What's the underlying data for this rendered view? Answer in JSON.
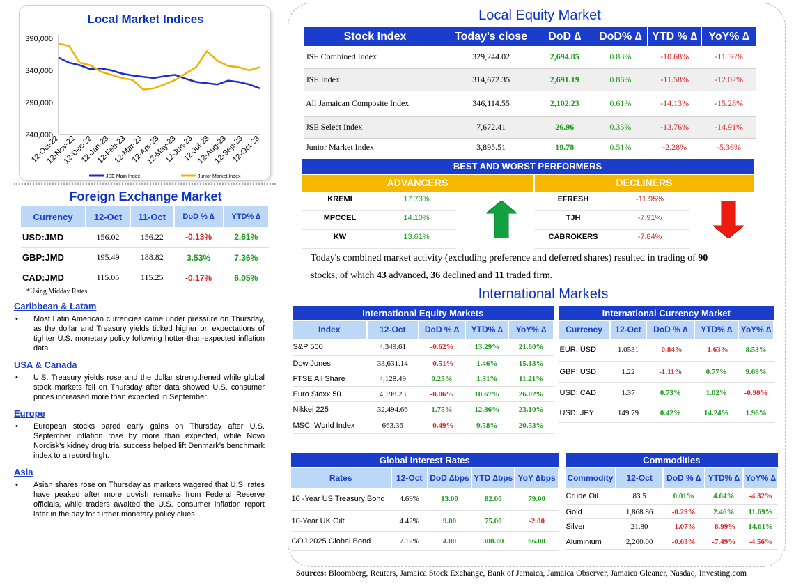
{
  "chart": {
    "title": "Local Market Indices",
    "yticks": [
      "390,000",
      "340,000",
      "290,000",
      "240,000"
    ],
    "xticks": [
      "12-Oct-22",
      "12-Nov-22",
      "12-Dec-22",
      "12-Jan-23",
      "12-Feb-23",
      "12-Mar-23",
      "12-Apr-23",
      "12-May-23",
      "12-Jun-23",
      "12-Jul-23",
      "12-Aug-23",
      "12-Sep-23",
      "12-Oct-23"
    ],
    "legend": [
      "JSE Main Index",
      "Junior Market Index"
    ],
    "colors": [
      "#1a2ccc",
      "#f0b400"
    ]
  },
  "chart_data": {
    "type": "line",
    "ylim": [
      240000,
      390000
    ],
    "series": [
      {
        "name": "JSE Main Index",
        "values": [
          360000,
          352000,
          348000,
          342000,
          343000,
          340000,
          335000,
          332000,
          330000,
          328000,
          331000,
          333000,
          327000,
          322000,
          320000,
          318000,
          324000,
          322000,
          318000,
          312000
        ]
      },
      {
        "name": "Junior Market Index",
        "values": [
          382000,
          378000,
          352000,
          348000,
          338000,
          333000,
          328000,
          325000,
          310000,
          312000,
          318000,
          325000,
          335000,
          345000,
          370000,
          355000,
          347000,
          345000,
          340000,
          345000
        ]
      }
    ]
  },
  "fx": {
    "title": "Foreign Exchange Market",
    "headers": [
      "Currency",
      "12-Oct",
      "11-Oct",
      "DoD % ∆",
      "YTD% ∆"
    ],
    "rows": [
      [
        "USD:JMD",
        "156.02",
        "156.22",
        "-0.13%",
        "2.61%"
      ],
      [
        "GBP:JMD",
        "195.49",
        "188.82",
        "3.53%",
        "7.36%"
      ],
      [
        "CAD:JMD",
        "115.05",
        "115.25",
        "-0.17%",
        "6.05%"
      ]
    ],
    "note": "*Using Midday Rates"
  },
  "news": [
    {
      "h": "Caribbean & Latam",
      "p": "Most Latin American currencies came under pressure on Thursday, as the dollar and Treasury yields ticked higher on expectations of tighter U.S. monetary policy following hotter-than-expected inflation data."
    },
    {
      "h": "USA & Canada",
      "p": "U.S. Treasury yields rose and the dollar strengthened while global stock markets fell on Thursday after data showed U.S. consumer prices increased more than expected in September."
    },
    {
      "h": "Europe",
      "p": "European stocks pared early gains on Thursday after U.S. September inflation rose by more than expected, while Novo Nordisk's kidney drug trial success helped lift Denmark's benchmark index to a record high."
    },
    {
      "h": "Asia",
      "p": "Asian shares rose on Thursday as markets wagered that U.S. rates have peaked after more dovish remarks from Federal Reserve officials, while traders awaited the U.S. consumer inflation report later in the day for further monetary policy clues."
    }
  ],
  "lem": {
    "title": "Local Equity Market",
    "headers": [
      "Stock Index",
      "Today's close",
      "DoD  ∆",
      "DoD% ∆",
      "YTD % ∆",
      "YoY% ∆"
    ],
    "rows": [
      [
        "JSE Combined Index",
        "329,244.02",
        "2,694.85",
        "0.83%",
        "-10.68%",
        "-11.36%"
      ],
      [
        "JSE Index",
        "314,672.35",
        "2,691.19",
        "0.86%",
        "-11.58%",
        "-12.02%"
      ],
      [
        "All Jamaican Composite Index",
        "346,114.55",
        "2,102.23",
        "0.61%",
        "-14.13%",
        "-15.28%"
      ],
      [
        "JSE Select Index",
        "7,672.41",
        "26.96",
        "0.35%",
        "-13.76%",
        "-14.91%"
      ],
      [
        "Junior Market Index",
        "3,895.51",
        "19.78",
        "0.51%",
        "-2.28%",
        "-5.36%"
      ]
    ]
  },
  "bw": {
    "title": "BEST AND WORST PERFORMERS",
    "adv": "ADVANCERS",
    "dec": "DECLINERS",
    "advancers": [
      [
        "KREMI",
        "17.73%"
      ],
      [
        "MPCCEL",
        "14.10%"
      ],
      [
        "KW",
        "13.61%"
      ]
    ],
    "decliners": [
      [
        "EFRESH",
        "-11.95%"
      ],
      [
        "TJH",
        "-7.91%"
      ],
      [
        "CABROKERS",
        "-7.84%"
      ]
    ]
  },
  "summary": {
    "a": "Today's combined market activity (excluding preference and deferred shares) resulted in trading of ",
    "n1": "90",
    "b": " stocks, of which ",
    "n2": "43",
    "c": " advanced, ",
    "n3": "36",
    "d": " declined and ",
    "n4": "11",
    "e": " traded firm."
  },
  "intl": {
    "title": "International Markets"
  },
  "iem": {
    "title": "International Equity Markets",
    "headers": [
      "Index",
      "12-Oct",
      "DoD % ∆",
      "YTD% ∆",
      "YoY% ∆"
    ],
    "rows": [
      [
        "S&P 500",
        "4,349.61",
        "-0.62%",
        "13.29%",
        "21.60%"
      ],
      [
        "Dow Jones",
        "33,631.14",
        "-0.51%",
        "1.46%",
        "15.13%"
      ],
      [
        "FTSE All Share",
        "4,128.49",
        "0.25%",
        "1.31%",
        "11.21%"
      ],
      [
        "Euro Stoxx 50",
        "4,198.23",
        "-0.06%",
        "10.67%",
        "26.02%"
      ],
      [
        "Nikkei 225",
        "32,494.66",
        "1.75%",
        "12.86%",
        "23.10%"
      ],
      [
        "MSCI World Index",
        "663.36",
        "-0.49%",
        "9.58%",
        "20.53%"
      ]
    ]
  },
  "icm": {
    "title": "International Currency Market",
    "headers": [
      "Currency",
      "12-Oct",
      "DoD % ∆",
      "YTD% ∆",
      "YoY% ∆"
    ],
    "rows": [
      [
        "EUR: USD",
        "1.0531",
        "-0.84%",
        "-1.63%",
        "8.53%"
      ],
      [
        "GBP: USD",
        "1.22",
        "-1.11%",
        "0.77%",
        "9.69%"
      ],
      [
        "USD: CAD",
        "1.37",
        "0.73%",
        "1.02%",
        "-0.90%"
      ],
      [
        "USD: JPY",
        "149.79",
        "0.42%",
        "14.24%",
        "1.96%"
      ]
    ]
  },
  "gir": {
    "title": "Global Interest Rates",
    "headers": [
      "Rates",
      "12-Oct",
      "DoD ∆bps",
      "YTD ∆bps",
      "YoY ∆bps"
    ],
    "rows": [
      [
        "10 -Year US Treasury Bond",
        "4.69%",
        "13.00",
        "82.00",
        "79.00"
      ],
      [
        "10-Year UK Gilt",
        "4.42%",
        "9.00",
        "75.00",
        "-2.00"
      ],
      [
        "GOJ 2025 Global Bond",
        "7.12%",
        "4.00",
        "308.00",
        "66.00"
      ]
    ]
  },
  "com": {
    "title": "Commodities",
    "headers": [
      "Commodity",
      "12-Oct",
      "DoD % ∆",
      "YTD% ∆",
      "YoY% ∆"
    ],
    "rows": [
      [
        "Crude Oil",
        "83.5",
        "0.01%",
        "4.04%",
        "-4.32%"
      ],
      [
        "Gold",
        "1,868.86",
        "-0.29%",
        "2.46%",
        "11.69%"
      ],
      [
        "Silver",
        "21.80",
        "-1.07%",
        "-8.99%",
        "14.61%"
      ],
      [
        "Aluminium",
        "2,200.00",
        "-0.63%",
        "-7.49%",
        "-4.56%"
      ]
    ]
  },
  "sources": {
    "label": "Sources:",
    "text": " Bloomberg, Reuters, Jamaica Stock Exchange, Bank of Jamaica, Jamaica Observer, Jamaica Gleaner, Nasdaq, Investing.com"
  }
}
